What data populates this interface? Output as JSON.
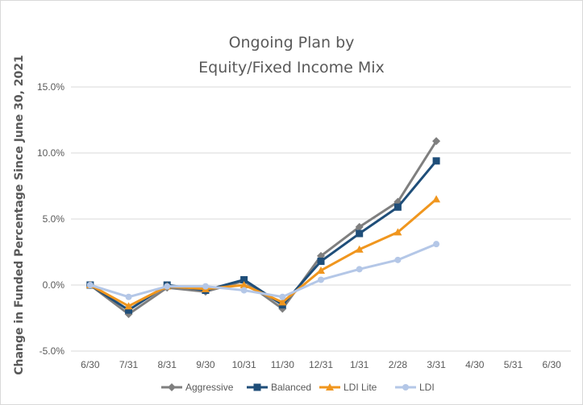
{
  "chart_data": {
    "type": "line",
    "title_line1": "Ongoing Plan by",
    "title_line2": "Equity/Fixed Income Mix",
    "ylabel": "Change in Funded Percentage Since June 30, 2021",
    "xlabel": "",
    "categories": [
      "6/30",
      "7/31",
      "8/31",
      "9/30",
      "10/31",
      "11/30",
      "12/31",
      "1/31",
      "2/28",
      "3/31",
      "4/30",
      "5/31",
      "6/30"
    ],
    "y_ticks": [
      "15.0%",
      "10.0%",
      "5.0%",
      "0.0%",
      "-5.0%"
    ],
    "ylim": [
      -5,
      15
    ],
    "grid": "horizontal",
    "legend_position": "bottom",
    "series": [
      {
        "name": "Aggressive",
        "color": "#7f7f7f",
        "marker": "diamond",
        "values": [
          0.0,
          -2.2,
          -0.2,
          -0.5,
          0.3,
          -1.8,
          2.2,
          4.4,
          6.3,
          10.9,
          null,
          null,
          null
        ]
      },
      {
        "name": "Balanced",
        "color": "#1f4e79",
        "marker": "square",
        "values": [
          0.0,
          -1.9,
          0.0,
          -0.4,
          0.4,
          -1.5,
          1.8,
          3.9,
          5.9,
          9.4,
          null,
          null,
          null
        ]
      },
      {
        "name": "LDI Lite",
        "color": "#f0961e",
        "marker": "triangle",
        "values": [
          0.0,
          -1.6,
          -0.1,
          -0.3,
          0.0,
          -1.3,
          1.1,
          2.7,
          4.0,
          6.5,
          null,
          null,
          null
        ]
      },
      {
        "name": "LDI",
        "color": "#b4c7e7",
        "marker": "circle",
        "values": [
          0.0,
          -0.9,
          -0.1,
          -0.1,
          -0.4,
          -0.9,
          0.4,
          1.2,
          1.9,
          3.1,
          null,
          null,
          null
        ]
      }
    ]
  }
}
